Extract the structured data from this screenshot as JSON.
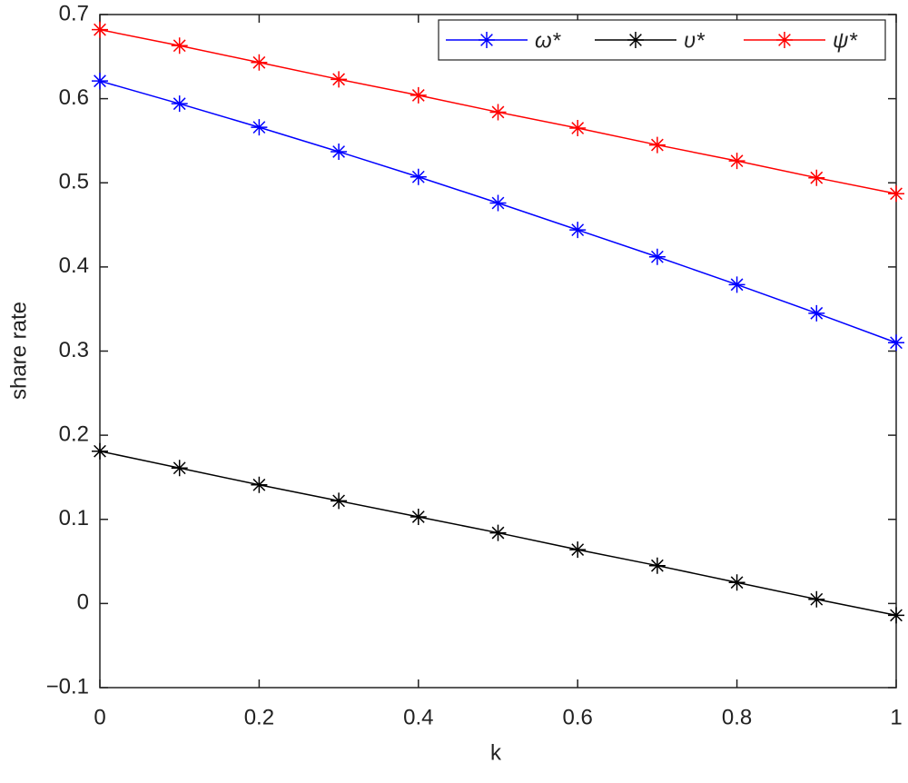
{
  "chart_data": {
    "type": "line",
    "x_label": "k",
    "y_label": "share rate",
    "x": [
      0,
      0.1,
      0.2,
      0.3,
      0.4,
      0.5,
      0.6,
      0.7,
      0.8,
      0.9,
      1
    ],
    "series": [
      {
        "name": "ω*",
        "color": "#0000ff",
        "values": [
          0.621,
          0.594,
          0.566,
          0.537,
          0.507,
          0.476,
          0.444,
          0.412,
          0.379,
          0.345,
          0.31
        ]
      },
      {
        "name": "υ*",
        "color": "#000000",
        "values": [
          0.181,
          0.161,
          0.141,
          0.122,
          0.103,
          0.084,
          0.064,
          0.045,
          0.025,
          0.005,
          -0.014
        ]
      },
      {
        "name": "ψ*",
        "color": "#ff0000",
        "values": [
          0.682,
          0.663,
          0.643,
          0.623,
          0.604,
          0.584,
          0.565,
          0.545,
          0.526,
          0.506,
          0.487
        ]
      }
    ],
    "xlim": [
      0,
      1
    ],
    "xticks": [
      0,
      0.2,
      0.4,
      0.6,
      0.8,
      1
    ],
    "ylim": [
      -0.1,
      0.7
    ],
    "yticks": [
      {
        "value": -0.1,
        "label": "−0.1"
      },
      0,
      0.1,
      0.2,
      0.3,
      0.4,
      0.5,
      0.6,
      0.7
    ],
    "legend": "upper right",
    "marker": "asterisk"
  }
}
